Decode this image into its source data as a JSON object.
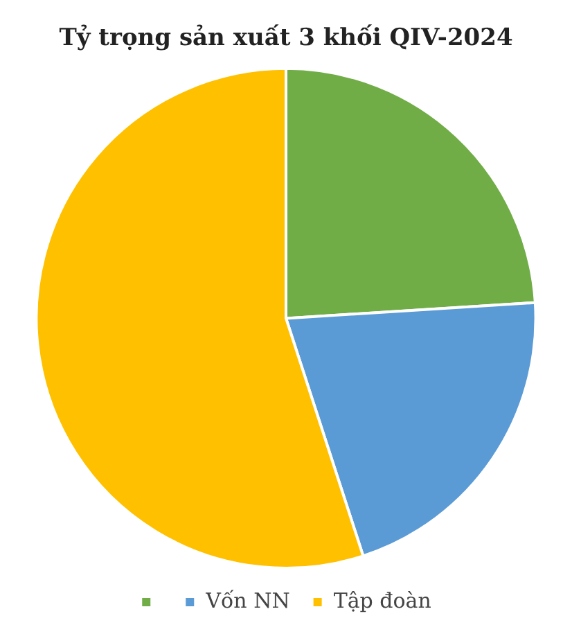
{
  "chart_data": {
    "type": "pie",
    "title": "Tỷ trọng sản xuất 3 khối QIV-2024",
    "categories": [
      null,
      "Vốn NN",
      "Tập đoàn"
    ],
    "values": [
      24,
      21,
      55
    ],
    "colors": [
      "#70ad47",
      "#5b9bd5",
      "#ffc000"
    ],
    "legend": "bottom"
  }
}
